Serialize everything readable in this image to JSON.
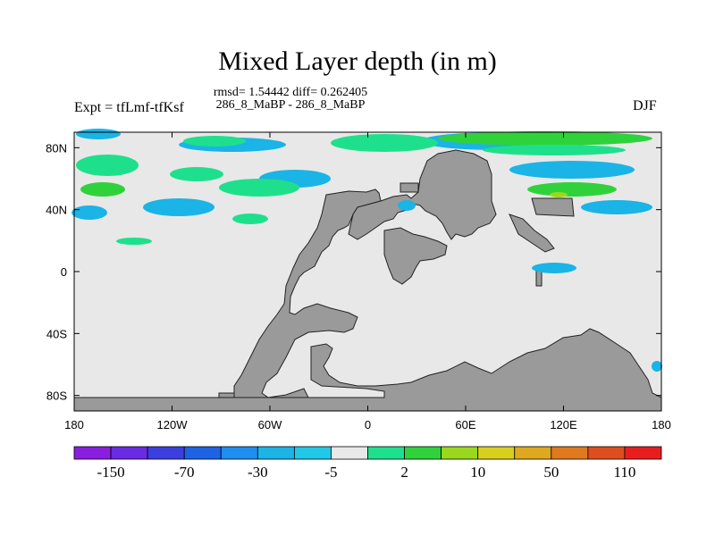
{
  "chart_data": {
    "type": "heatmap",
    "title": "Mixed Layer depth (in m)",
    "subtitle_line1": "rmsd= 1.54442 diff= 0.262405",
    "subtitle_line2": "286_8_MaBP - 286_8_MaBP",
    "left_label": "Expt = tfLmf-tfKsf",
    "right_label": "DJF",
    "x_ticks": [
      "180",
      "120W",
      "60W",
      "0",
      "60E",
      "120E",
      "180"
    ],
    "y_ticks": [
      "80N",
      "40N",
      "0",
      "40S",
      "80S"
    ],
    "x_range": [
      -180,
      180
    ],
    "y_range": [
      -90,
      90
    ],
    "colorbar": {
      "labels": [
        "-150",
        "-70",
        "-30",
        "-5",
        "2",
        "10",
        "50",
        "110"
      ],
      "colors": [
        "#8a1ee0",
        "#6a2ae6",
        "#3c3fe0",
        "#1e62e6",
        "#1e8ef0",
        "#1ab4e6",
        "#22c8e8",
        "#e8e8e8",
        "#1ee08c",
        "#30d23c",
        "#9ad81e",
        "#d8d01e",
        "#e0a81e",
        "#e07a1e",
        "#e04e1e",
        "#e81e1e"
      ]
    },
    "land_color": "#9a9a9a",
    "ocean_color": "#e8e8e8"
  }
}
